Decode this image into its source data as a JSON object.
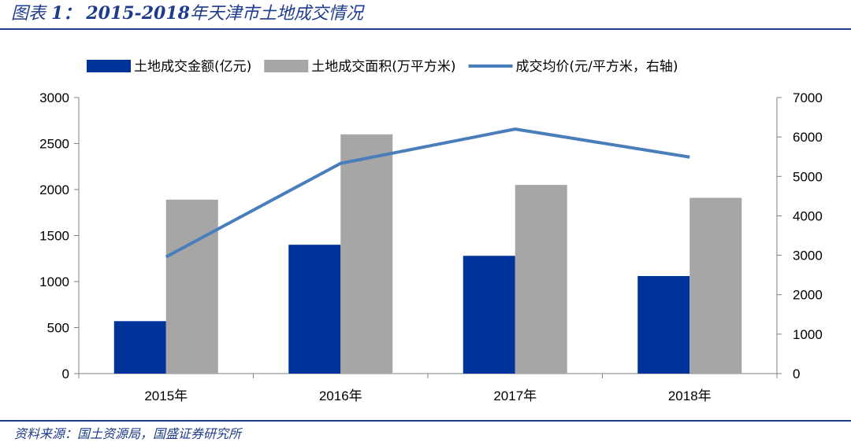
{
  "header": {
    "prefix": "图表",
    "number": "1：",
    "title_num": "2015-2018",
    "title_text": "年天津市土地成交情况"
  },
  "source": "资料来源：国土资源局，国盛证券研究所",
  "chart_data": {
    "type": "bar",
    "categories": [
      "2015年",
      "2016年",
      "2017年",
      "2018年"
    ],
    "series": [
      {
        "name": "土地成交金额(亿元)",
        "type": "bar",
        "axis": "left",
        "color": "#003399",
        "values": [
          570,
          1400,
          1280,
          1060
        ]
      },
      {
        "name": "土地成交面积(万平方米)",
        "type": "bar",
        "axis": "left",
        "color": "#a6a6a6",
        "values": [
          1890,
          2600,
          2050,
          1910
        ]
      },
      {
        "name": "成交均价(元/平方米，右轴)",
        "type": "line",
        "axis": "right",
        "color": "#4a7ebb",
        "values": [
          2960,
          5330,
          6200,
          5490
        ]
      }
    ],
    "y_left": {
      "min": 0,
      "max": 3000,
      "ticks": [
        0,
        500,
        1000,
        1500,
        2000,
        2500,
        3000
      ]
    },
    "y_right": {
      "min": 0,
      "max": 7000,
      "ticks": [
        0,
        1000,
        2000,
        3000,
        4000,
        5000,
        6000,
        7000
      ]
    },
    "grid": false,
    "legend": "top"
  }
}
